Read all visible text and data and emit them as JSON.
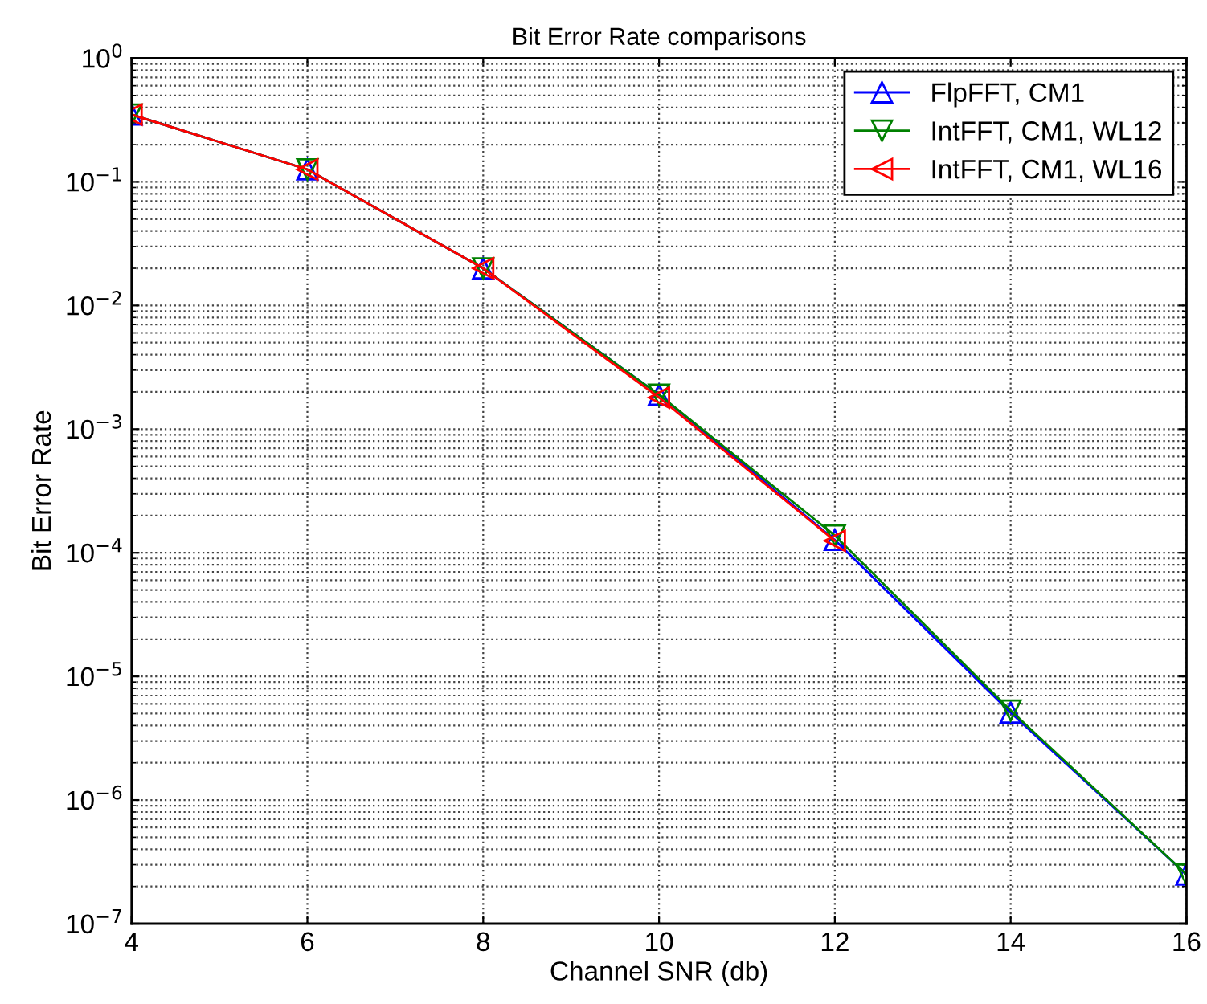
{
  "chart_data": {
    "type": "line",
    "title": "Bit Error Rate comparisons",
    "xlabel": "Channel SNR (db)",
    "ylabel": "Bit Error Rate",
    "x": [
      4,
      6,
      8,
      10,
      12,
      14,
      16
    ],
    "series": [
      {
        "name": "FlpFFT, CM1",
        "color": "#0000ff",
        "marker": "triangle-up",
        "values": [
          0.35,
          0.126,
          0.02,
          0.0019,
          0.000127,
          5.1e-06,
          2.5e-07
        ]
      },
      {
        "name": "IntFFT, CM1, WL12",
        "color": "#008000",
        "marker": "triangle-down",
        "values": [
          0.35,
          0.126,
          0.02,
          0.0019,
          0.000138,
          5.3e-06,
          2.5e-07
        ]
      },
      {
        "name": "IntFFT, CM1, WL16",
        "color": "#ff0000",
        "marker": "triangle-left",
        "values": [
          0.35,
          0.126,
          0.02,
          0.0018,
          0.000125,
          null,
          null
        ]
      }
    ],
    "log": "y",
    "xlim": [
      4,
      16
    ],
    "xticks": [
      4,
      6,
      8,
      10,
      12,
      14,
      16
    ],
    "ylim": [
      1e-07,
      1
    ],
    "yticks": [
      {
        "value": 1e-07,
        "label": "10$^{−7}$"
      },
      {
        "value": 1e-06,
        "label": "10$^{−6}$"
      },
      {
        "value": 1e-05,
        "label": "10$^{−5}$"
      },
      {
        "value": 0.0001,
        "label": "10$^{−4}$"
      },
      {
        "value": 0.001,
        "label": "10$^{−3}$"
      },
      {
        "value": 0.01,
        "label": "10$^{−2}$"
      },
      {
        "value": 0.1,
        "label": "10$^{−1}$"
      },
      {
        "value": 1,
        "label": "10$^{0}$"
      }
    ],
    "grid": true,
    "legend": "top right",
    "line_style": "solid"
  }
}
